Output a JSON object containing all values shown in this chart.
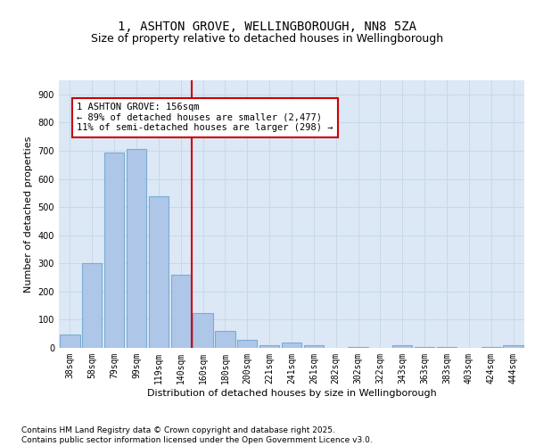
{
  "title_line1": "1, ASHTON GROVE, WELLINGBOROUGH, NN8 5ZA",
  "title_line2": "Size of property relative to detached houses in Wellingborough",
  "xlabel": "Distribution of detached houses by size in Wellingborough",
  "ylabel": "Number of detached properties",
  "categories": [
    "38sqm",
    "58sqm",
    "79sqm",
    "99sqm",
    "119sqm",
    "140sqm",
    "160sqm",
    "180sqm",
    "200sqm",
    "221sqm",
    "241sqm",
    "261sqm",
    "282sqm",
    "302sqm",
    "322sqm",
    "343sqm",
    "363sqm",
    "383sqm",
    "403sqm",
    "424sqm",
    "444sqm"
  ],
  "values": [
    47,
    300,
    693,
    706,
    538,
    261,
    122,
    59,
    28,
    10,
    20,
    8,
    0,
    4,
    0,
    10,
    2,
    2,
    0,
    2,
    8
  ],
  "bar_color": "#aec6e8",
  "bar_edge_color": "#7aadd4",
  "bar_linewidth": 0.8,
  "vline_x_index": 6,
  "vline_color": "#cc0000",
  "vline_label": "1 ASHTON GROVE: 156sqm",
  "annotation_line2": "← 89% of detached houses are smaller (2,477)",
  "annotation_line3": "11% of semi-detached houses are larger (298) →",
  "annotation_box_color": "#ffffff",
  "annotation_box_edge": "#cc0000",
  "annotation_fontsize": 7.5,
  "ylim": [
    0,
    950
  ],
  "yticks": [
    0,
    100,
    200,
    300,
    400,
    500,
    600,
    700,
    800,
    900
  ],
  "grid_color": "#c8d8e8",
  "background_color": "#dce8f5",
  "title_fontsize": 10,
  "subtitle_fontsize": 9,
  "axis_label_fontsize": 8,
  "tick_fontsize": 7,
  "footer_line1": "Contains HM Land Registry data © Crown copyright and database right 2025.",
  "footer_line2": "Contains public sector information licensed under the Open Government Licence v3.0.",
  "footer_fontsize": 6.5
}
